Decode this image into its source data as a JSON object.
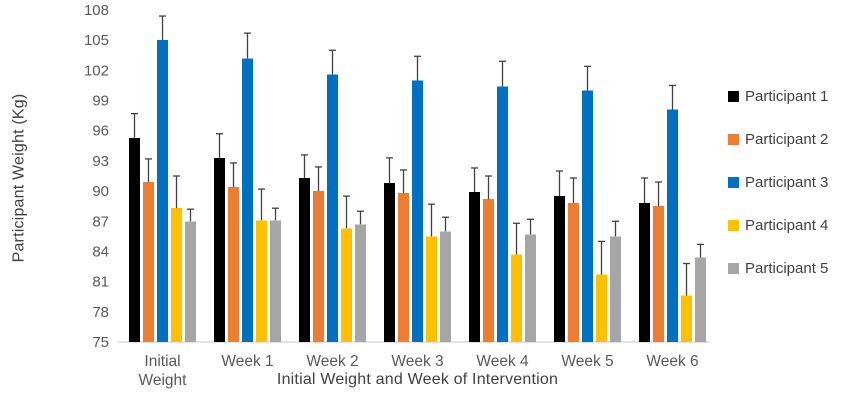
{
  "chart_data": {
    "type": "bar",
    "title": "",
    "xlabel": "Initial Weight and Week of Intervention",
    "ylabel": "Participant Weight (Kg)",
    "categories": [
      "Initial Weight",
      "Week 1",
      "Week 2",
      "Week 3",
      "Week 4",
      "Week 5",
      "Week 6"
    ],
    "series": [
      {
        "name": "Participant 1",
        "color": "#000000",
        "values": [
          95.3,
          93.3,
          91.3,
          90.8,
          89.9,
          89.5,
          88.8
        ],
        "errors_plus": [
          2.4,
          2.4,
          2.3,
          2.5,
          2.4,
          2.5,
          2.5
        ]
      },
      {
        "name": "Participant 2",
        "color": "#ED7D31",
        "values": [
          90.9,
          90.4,
          90.0,
          89.8,
          89.2,
          88.8,
          88.5
        ],
        "errors_plus": [
          2.3,
          2.4,
          2.4,
          2.3,
          2.3,
          2.5,
          2.4
        ]
      },
      {
        "name": "Participant 3",
        "color": "#0070C0",
        "values": [
          105.0,
          103.2,
          101.6,
          101.0,
          100.4,
          100.0,
          98.1
        ],
        "errors_plus": [
          2.4,
          2.5,
          2.4,
          2.4,
          2.5,
          2.4,
          2.4
        ]
      },
      {
        "name": "Participant 4",
        "color": "#FFC000",
        "values": [
          88.3,
          87.1,
          86.3,
          85.5,
          83.7,
          81.7,
          79.6
        ],
        "errors_plus": [
          3.2,
          3.1,
          3.2,
          3.2,
          3.1,
          3.3,
          3.2
        ]
      },
      {
        "name": "Participant 5",
        "color": "#A6A6A6",
        "values": [
          87.0,
          87.1,
          86.7,
          86.0,
          85.7,
          85.5,
          83.4
        ],
        "errors_plus": [
          1.2,
          1.2,
          1.3,
          1.4,
          1.5,
          1.5,
          1.3
        ]
      }
    ],
    "ylim": [
      75,
      108
    ],
    "ytick_step": 3,
    "grid": false,
    "legend_position": "right",
    "error_bars": "plus-only",
    "colors": {
      "axis_text": "#595959",
      "title_text": "#404040",
      "baseline": "#D9D9D9",
      "error_bar": "#404040",
      "background": "#FFFFFF"
    }
  }
}
